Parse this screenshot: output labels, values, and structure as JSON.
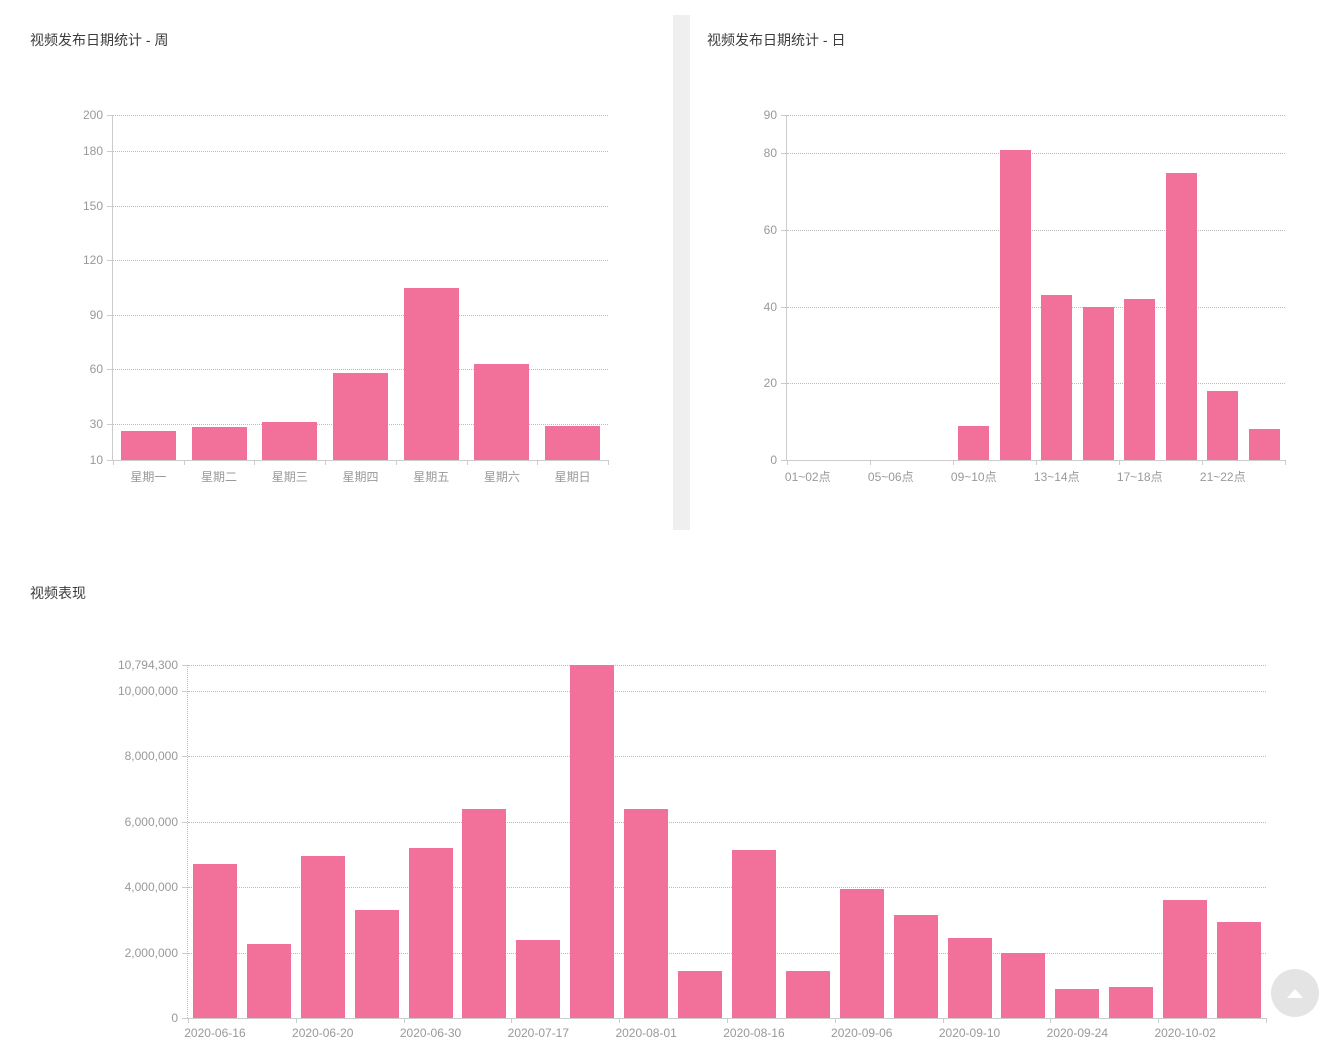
{
  "colors": {
    "background": "#ffffff",
    "bar": "#f2719b",
    "axis_line": "#cccccc",
    "gridline": "#bbbbbb",
    "tick_label": "#999999",
    "chart_title": "#3c3c3c",
    "divider": "#efefef",
    "back_to_top_bg": "#e4e4e4",
    "back_to_top_arrow": "#ffffff"
  },
  "back_to_top": {
    "icon": "arrow-up-icon"
  },
  "chart_data": [
    {
      "id": "publish-weekday",
      "type": "bar",
      "title": "视频发布日期统计 - 周",
      "categories": [
        "星期一",
        "星期二",
        "星期三",
        "星期四",
        "星期五",
        "星期六",
        "星期日"
      ],
      "values": [
        26,
        28,
        31,
        58,
        105,
        63,
        29
      ],
      "x_labels": [
        "星期一",
        "星期二",
        "星期三",
        "星期四",
        "星期五",
        "星期六",
        "星期日"
      ],
      "label_every": 1,
      "y_ticks": [
        200,
        180,
        150,
        120,
        90,
        60,
        30,
        10
      ],
      "y_tick_labels": [
        "200",
        "180",
        "150",
        "120",
        "90",
        "60",
        "30",
        "10"
      ],
      "ylim": [
        10,
        200
      ],
      "grid": "dotted-horizontal",
      "legend": "none"
    },
    {
      "id": "publish-hour",
      "type": "bar",
      "title": "视频发布日期统计 - 日",
      "values": [
        0,
        0,
        0,
        0,
        9,
        81,
        43,
        40,
        42,
        75,
        18,
        8
      ],
      "x_labels": [
        "01~02点",
        "05~06点",
        "09~10点",
        "13~14点",
        "17~18点",
        "21~22点"
      ],
      "label_every": 2,
      "y_ticks": [
        90,
        80,
        60,
        40,
        20,
        0
      ],
      "y_tick_labels": [
        "90",
        "80",
        "60",
        "40",
        "20",
        "0"
      ],
      "ylim": [
        0,
        90
      ],
      "grid": "dotted-horizontal",
      "legend": "none"
    },
    {
      "id": "video-performance",
      "type": "bar",
      "title": "视频表现",
      "values": [
        4700000,
        2250000,
        4950000,
        3300000,
        5200000,
        6400000,
        2400000,
        10794300,
        6400000,
        1450000,
        5150000,
        1450000,
        3950000,
        3150000,
        2450000,
        2000000,
        900000,
        950000,
        3600000,
        2950000
      ],
      "x_labels": [
        "2020-06-16",
        "2020-06-20",
        "2020-06-30",
        "2020-07-17",
        "2020-08-01",
        "2020-08-16",
        "2020-09-06",
        "2020-09-10",
        "2020-09-24",
        "2020-10-02"
      ],
      "label_every": 2,
      "y_ticks": [
        10794300,
        10000000,
        8000000,
        6000000,
        4000000,
        2000000,
        0
      ],
      "y_tick_labels": [
        "10,794,300",
        "10,000,000",
        "8,000,000",
        "6,000,000",
        "4,000,000",
        "2,000,000",
        "0"
      ],
      "ylim": [
        0,
        10794300
      ],
      "grid": "dotted-horizontal",
      "legend": "none"
    }
  ]
}
